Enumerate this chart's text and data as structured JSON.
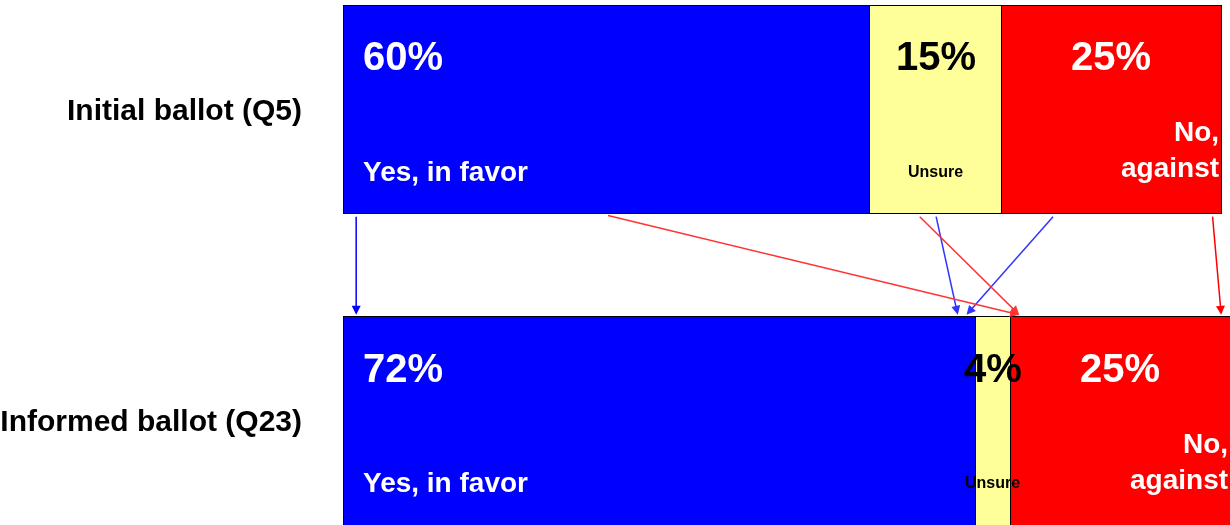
{
  "chart_data": {
    "type": "bar",
    "orientation": "horizontal",
    "stacked": true,
    "categories": [
      "Initial ballot (Q5)",
      "Informed ballot (Q23)"
    ],
    "series": [
      {
        "name": "Yes, in favor",
        "color": "#0000ff",
        "values": [
          60,
          72
        ],
        "value_labels": [
          "60%",
          "72%"
        ]
      },
      {
        "name": "Unsure",
        "color": "#ffff99",
        "values": [
          15,
          4
        ],
        "value_labels": [
          "15%",
          "4%"
        ]
      },
      {
        "name": "No, against",
        "color": "#ff0000",
        "values": [
          25,
          25
        ],
        "value_labels": [
          "25%",
          "25%"
        ]
      }
    ],
    "legend": false
  }
}
